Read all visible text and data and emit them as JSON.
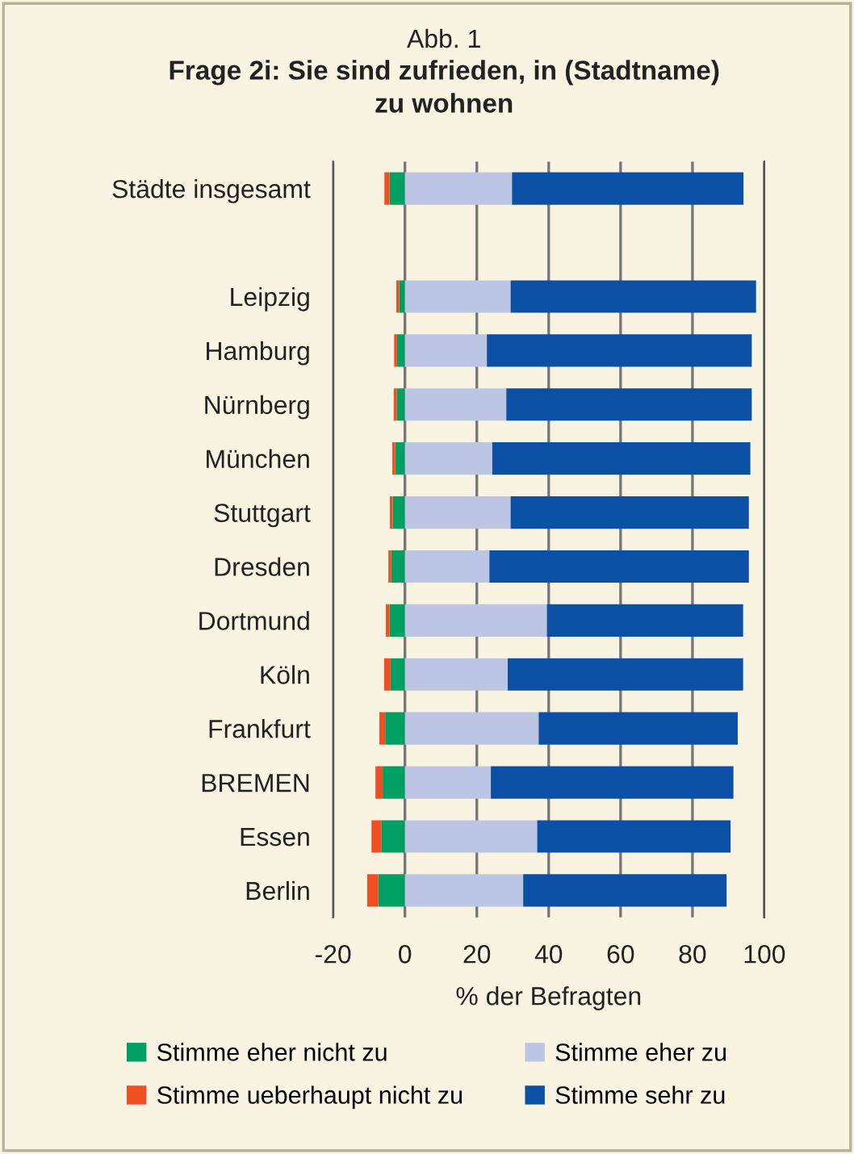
{
  "chart_data": {
    "type": "bar",
    "orientation": "horizontal",
    "stacked": true,
    "subtitle": "Abb. 1",
    "title": "Frage 2i: Sie sind zufrieden, in (Stadtname)\nzu wohnen",
    "xlabel": "% der Befragten",
    "categories": [
      "Städte insgesamt",
      null,
      "Leipzig",
      "Hamburg",
      "Nürnberg",
      "München",
      "Stuttgart",
      "Dresden",
      "Dortmund",
      "Köln",
      "Frankfurt",
      "BREMEN",
      "Essen",
      "Berlin"
    ],
    "series": [
      {
        "name": "Stimme eher nicht zu",
        "color": "#00a065",
        "values": [
          -4.3,
          null,
          -1.6,
          -2.2,
          -2.3,
          -2.7,
          -3.4,
          -3.8,
          -4.3,
          -4,
          -5.5,
          -6.2,
          -6.6,
          -7.4
        ]
      },
      {
        "name": "Stimme ueberhaupt nicht zu",
        "color": "#f04e23",
        "values": [
          -1.4,
          null,
          -0.8,
          -0.8,
          -0.8,
          -0.8,
          -0.8,
          -0.8,
          -1,
          -1.8,
          -1.6,
          -2,
          -2.7,
          -3.1
        ]
      },
      {
        "name": "Stimme eher zu",
        "color": "#bcc5e3",
        "values": [
          29.8,
          null,
          29.4,
          22.8,
          28.2,
          24.3,
          29.4,
          23.5,
          39.5,
          28.6,
          37.2,
          23.9,
          36.8,
          32.9
        ]
      },
      {
        "name": "Stimme sehr zu",
        "color": "#0b50a5",
        "values": [
          64.4,
          null,
          68.3,
          73.7,
          68.3,
          71.8,
          66.3,
          72.2,
          54.6,
          65.5,
          55.4,
          67.5,
          53.8,
          56.6
        ]
      }
    ],
    "xlim": [
      -20,
      100
    ],
    "xticks": [
      -20,
      0,
      20,
      40,
      60,
      80,
      100
    ],
    "grid": "x",
    "legend": "bottom"
  }
}
